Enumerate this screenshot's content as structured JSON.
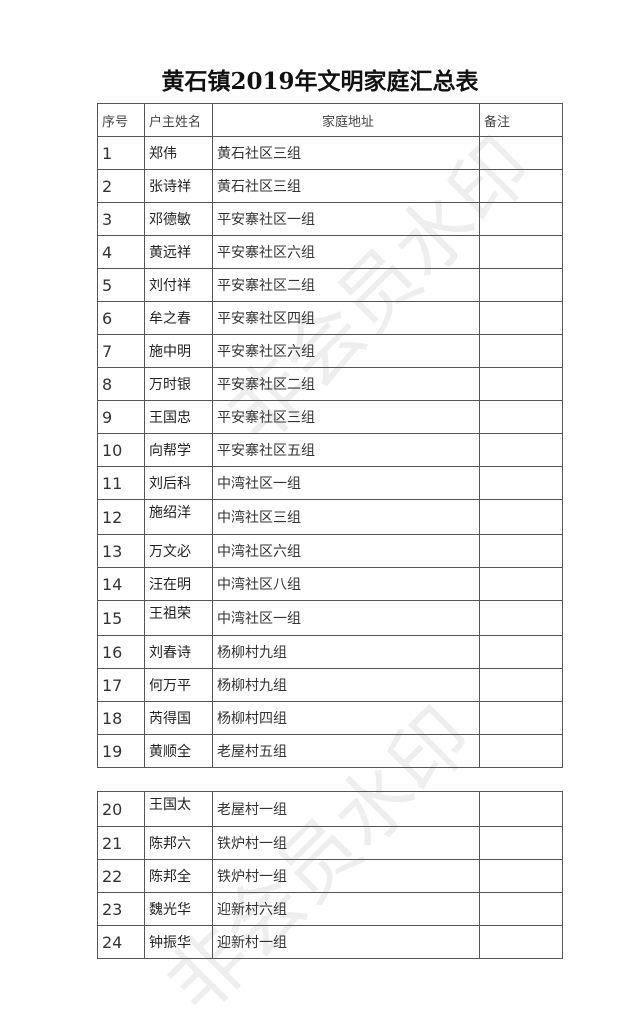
{
  "title": "黄石镇2019年文明家庭汇总表",
  "watermark": "非会员水印",
  "headers": [
    "序号",
    "户主姓名",
    "家庭地址",
    "备注"
  ],
  "rows": [
    [
      "1",
      "郑伟",
      "黄石社区三组",
      ""
    ],
    [
      "2",
      "张诗祥",
      "黄石社区三组",
      ""
    ],
    [
      "3",
      "邓德敏",
      "平安寨社区一组",
      ""
    ],
    [
      "4",
      "黄远祥",
      "平安寨社区六组",
      ""
    ],
    [
      "5",
      "刘付祥",
      "平安寨社区二组",
      ""
    ],
    [
      "6",
      "牟之春",
      "平安寨社区四组",
      ""
    ],
    [
      "7",
      "施中明",
      "平安寨社区六组",
      ""
    ],
    [
      "8",
      "万时银",
      "平安寨社区二组",
      ""
    ],
    [
      "9",
      "王国忠",
      "平安寨社区三组",
      ""
    ],
    [
      "10",
      "向帮学",
      "平安寨社区五组",
      ""
    ],
    [
      "11",
      "刘后科",
      "中湾社区一组",
      ""
    ],
    [
      "12",
      "施绍洋",
      "中湾社区三组",
      ""
    ],
    [
      "13",
      "万文必",
      "中湾社区六组",
      ""
    ],
    [
      "14",
      "汪在明",
      "中湾社区八组",
      ""
    ],
    [
      "15",
      "王祖荣",
      "中湾社区一组",
      ""
    ],
    [
      "16",
      "刘春诗",
      "杨柳村九组",
      ""
    ],
    [
      "17",
      "何万平",
      "杨柳村九组",
      ""
    ],
    [
      "18",
      "芮得国",
      "杨柳村四组",
      ""
    ],
    [
      "19",
      "黄顺全",
      "老屋村五组",
      ""
    ],
    [
      "20",
      "王国太",
      "老屋村一组",
      ""
    ],
    [
      "21",
      "陈邦六",
      "铁炉村一组",
      ""
    ],
    [
      "22",
      "陈邦全",
      "铁炉村一组",
      ""
    ],
    [
      "23",
      "魏光华",
      "迎新村六组",
      ""
    ],
    [
      "24",
      "钟振华",
      "迎新村一组",
      ""
    ]
  ]
}
